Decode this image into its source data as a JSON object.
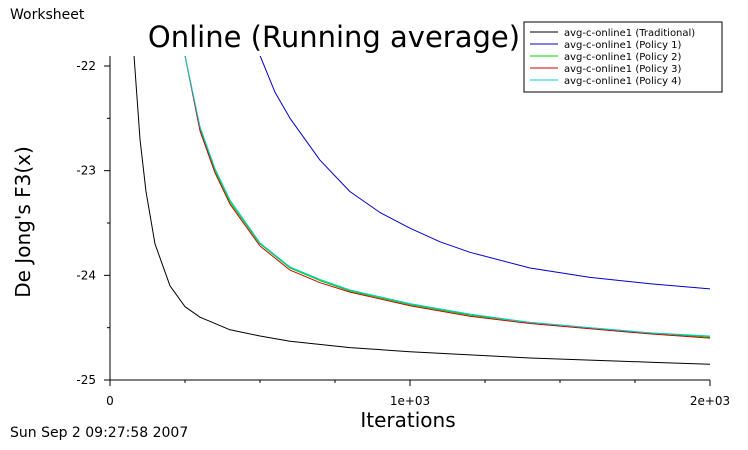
{
  "window_label": "Worksheet",
  "timestamp": "Sun Sep 2 09:27:58 2007",
  "chart_data": {
    "type": "line",
    "title": "Online (Running average)",
    "xlabel": "Iterations",
    "ylabel": "De Jong's F3(x)",
    "xlim": [
      0,
      2000
    ],
    "ylim": [
      -25,
      -22
    ],
    "x_ticks": [
      0,
      1000,
      2000
    ],
    "x_tick_labels": [
      "0",
      "1e+03",
      "2e+03"
    ],
    "x_minor_ticks": [
      250,
      500,
      750,
      1250,
      1500,
      1750
    ],
    "y_ticks": [
      -22,
      -23,
      -24,
      -25
    ],
    "y_tick_labels": [
      "-22",
      "-23",
      "-24",
      "-25"
    ],
    "y_minor_ticks": [
      -22.5,
      -23.5,
      -24.5
    ],
    "legend_position": "top-right",
    "grid": false,
    "series": [
      {
        "name": "avg-c-online1 (Traditional)",
        "color": "#000000",
        "x": [
          80,
          90,
          100,
          120,
          150,
          200,
          250,
          300,
          400,
          500,
          600,
          800,
          1000,
          1200,
          1400,
          1600,
          1800,
          2000
        ],
        "y": [
          -21.9,
          -22.3,
          -22.7,
          -23.2,
          -23.7,
          -24.1,
          -24.3,
          -24.4,
          -24.52,
          -24.58,
          -24.63,
          -24.69,
          -24.73,
          -24.76,
          -24.79,
          -24.81,
          -24.83,
          -24.85
        ]
      },
      {
        "name": "avg-c-online1 (Policy 1)",
        "color": "#0000cc",
        "x": [
          500,
          550,
          600,
          700,
          800,
          900,
          1000,
          1100,
          1200,
          1400,
          1600,
          1800,
          2000
        ],
        "y": [
          -21.9,
          -22.25,
          -22.5,
          -22.9,
          -23.2,
          -23.4,
          -23.55,
          -23.68,
          -23.78,
          -23.93,
          -24.02,
          -24.08,
          -24.13
        ]
      },
      {
        "name": "avg-c-online1 (Policy 2)",
        "color": "#00cc00",
        "x": [
          250,
          300,
          350,
          400,
          500,
          600,
          700,
          800,
          1000,
          1200,
          1400,
          1600,
          1800,
          2000
        ],
        "y": [
          -21.9,
          -22.6,
          -23.0,
          -23.3,
          -23.7,
          -23.93,
          -24.05,
          -24.15,
          -24.28,
          -24.38,
          -24.45,
          -24.5,
          -24.55,
          -24.59
        ]
      },
      {
        "name": "avg-c-online1 (Policy 3)",
        "color": "#cc0000",
        "x": [
          250,
          300,
          350,
          400,
          500,
          600,
          700,
          800,
          1000,
          1200,
          1400,
          1600,
          1800,
          2000
        ],
        "y": [
          -21.9,
          -22.62,
          -23.02,
          -23.32,
          -23.72,
          -23.95,
          -24.07,
          -24.16,
          -24.29,
          -24.39,
          -24.46,
          -24.51,
          -24.56,
          -24.6
        ]
      },
      {
        "name": "avg-c-online1 (Policy 4)",
        "color": "#00cccc",
        "x": [
          250,
          300,
          350,
          400,
          500,
          600,
          700,
          800,
          1000,
          1200,
          1400,
          1600,
          1800,
          2000
        ],
        "y": [
          -21.9,
          -22.58,
          -22.98,
          -23.28,
          -23.69,
          -23.92,
          -24.04,
          -24.14,
          -24.27,
          -24.37,
          -24.45,
          -24.5,
          -24.55,
          -24.58
        ]
      }
    ]
  }
}
